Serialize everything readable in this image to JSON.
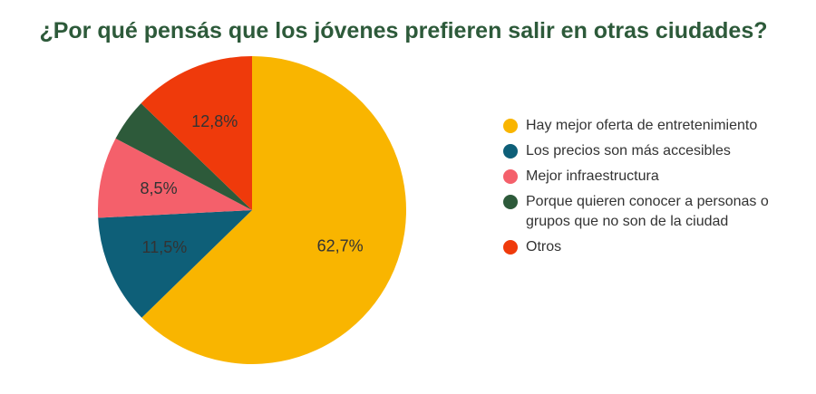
{
  "chart_data": {
    "type": "pie",
    "title": "¿Por qué pensás que los jóvenes prefieren salir en otras ciudades?",
    "categories": [
      "Hay mejor oferta de entretenimiento",
      "Los precios son más accesibles",
      "Mejor infraestructura",
      "Porque quieren conocer a personas o grupos que no son de la ciudad",
      "Otros"
    ],
    "values": [
      62.7,
      11.5,
      8.5,
      4.5,
      12.8
    ],
    "value_labels": [
      "62,7%",
      "11,5%",
      "8,5%",
      null,
      "12,8%"
    ],
    "colors": [
      "#f9b500",
      "#0e5f78",
      "#f4606b",
      "#2d5a3a",
      "#ef3a0b"
    ],
    "legend": "right"
  }
}
